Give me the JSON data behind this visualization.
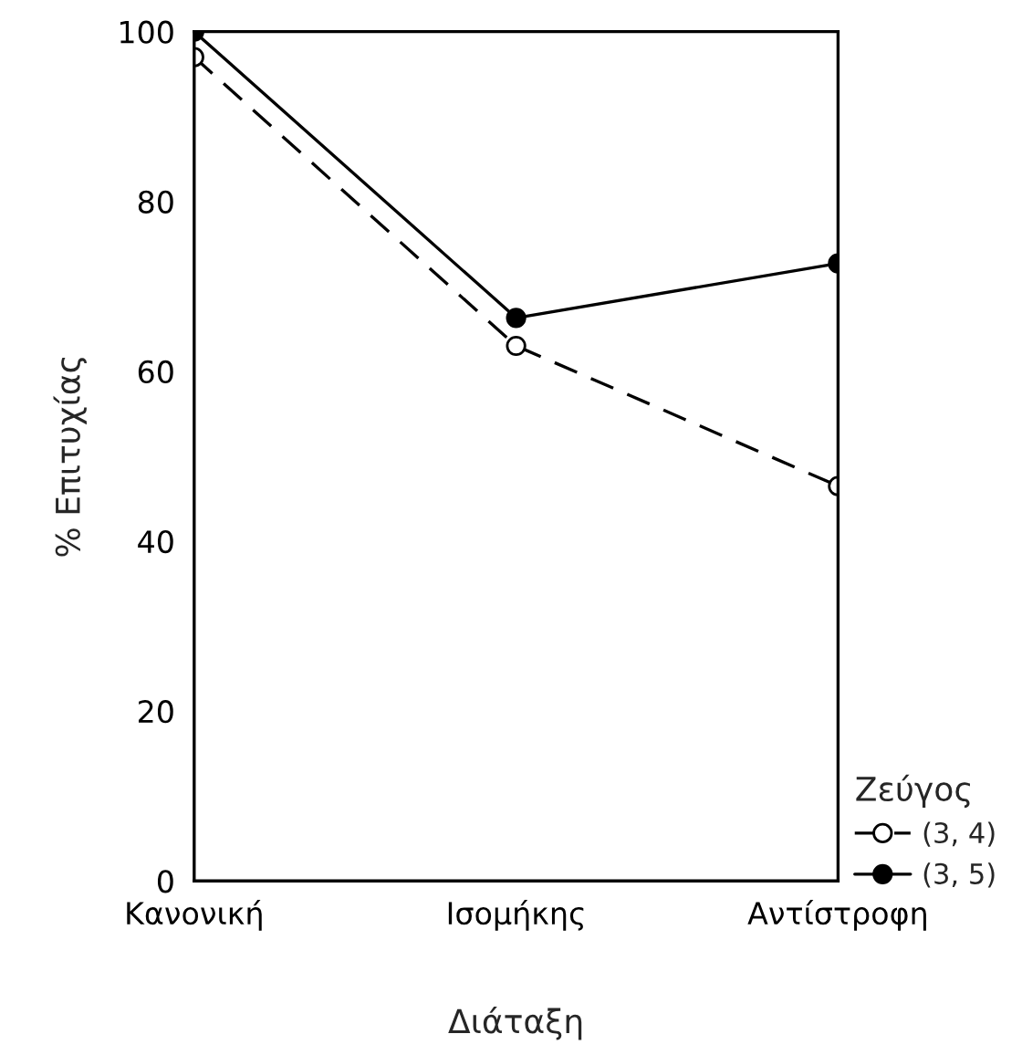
{
  "chart_data": {
    "type": "line",
    "xlabel": "Διάταξη",
    "ylabel": "% Επιτυχίας",
    "legend_title": "Ζεύγος",
    "categories": [
      "Κανονική",
      "Ισομήκης",
      "Αντίστροφη"
    ],
    "series": [
      {
        "name": "(3, 4)",
        "color": "#000000",
        "values": [
          97,
          63,
          46.5
        ],
        "line_style": "dashed",
        "marker": "circle"
      },
      {
        "name": "(3, 5)",
        "color": "#000000",
        "values": [
          100,
          66.3,
          72.7
        ],
        "line_style": "solid",
        "marker": "circle"
      }
    ],
    "ylim": [
      0,
      100
    ],
    "yticks": [
      0,
      20,
      40,
      60,
      80,
      100
    ],
    "grid": false,
    "legend": "bottom right"
  }
}
